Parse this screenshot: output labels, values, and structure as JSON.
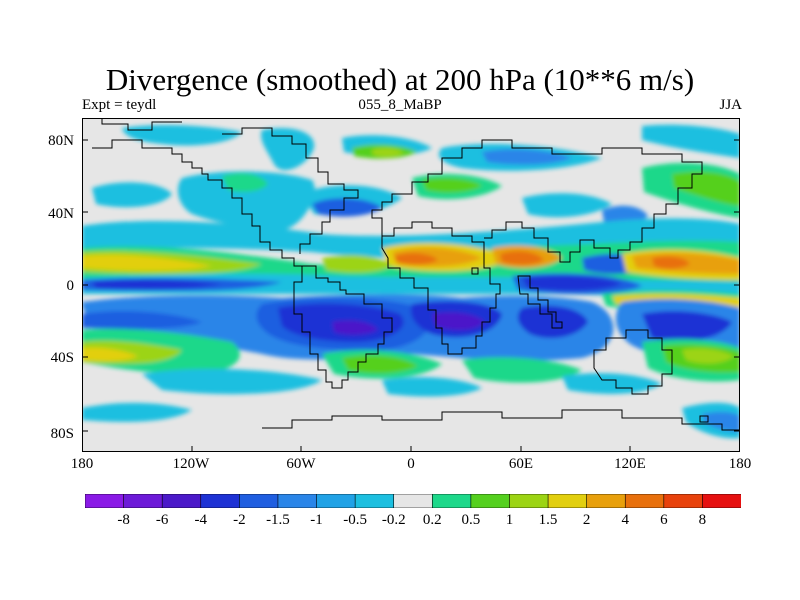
{
  "title": "Divergence (smoothed) at 200 hPa (10**6 m/s)",
  "subtitle": {
    "left": "Expt = teydl",
    "center": "055_8_MaBP",
    "right": "JJA"
  },
  "y_axis": [
    "80N",
    "40N",
    "0",
    "40S",
    "80S"
  ],
  "x_axis": [
    "180",
    "120W",
    "60W",
    "0",
    "60E",
    "120E",
    "180"
  ],
  "colorbar": {
    "colors": [
      "#8a1ae6",
      "#6d1ad8",
      "#4b19c9",
      "#1e32d4",
      "#1f5ee0",
      "#2a85e8",
      "#21a2e6",
      "#1dbfe0",
      "#e6e6e6",
      "#1dd88a",
      "#55d01f",
      "#9cd414",
      "#e2cf0f",
      "#e8a00c",
      "#e8700c",
      "#e8420c",
      "#e61010"
    ],
    "labels": [
      "-8",
      "-6",
      "-4",
      "-2",
      "-1.5",
      "-1",
      "-0.5",
      "-0.2",
      "0.2",
      "0.5",
      "1",
      "1.5",
      "2",
      "4",
      "6",
      "8"
    ]
  }
}
